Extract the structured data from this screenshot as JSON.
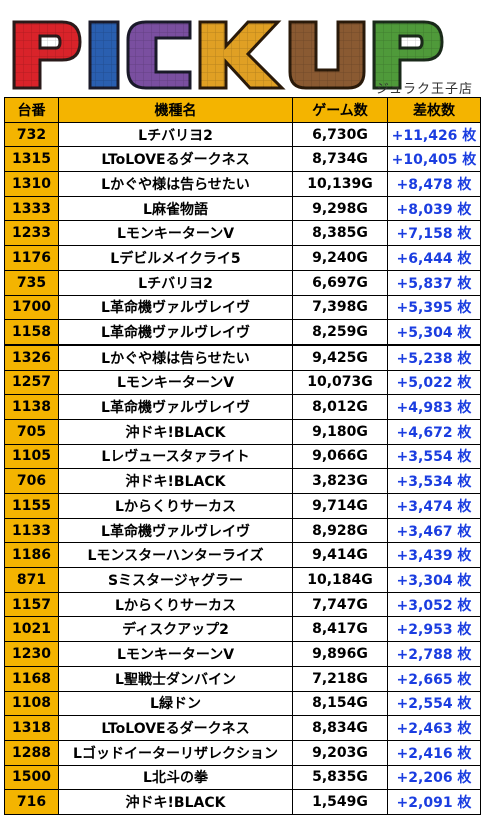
{
  "banner": {
    "title": "PICKUP",
    "store": "ジュラク王子店",
    "colors": {
      "P": "#d9232a",
      "I": "#2a5fb0",
      "C": "#7a4fa0",
      "K": "#e0a024",
      "U": "#8a5a32",
      "P2": "#4f9a3a"
    }
  },
  "table": {
    "headers": {
      "no": "台番",
      "name": "機種名",
      "games": "ゲーム数",
      "diff": "差枚数"
    },
    "rows": [
      {
        "no": "732",
        "name": "Lチバリヨ2",
        "games": "6,730G",
        "diff": "+11,426 枚"
      },
      {
        "no": "1315",
        "name": "LToLOVEるダークネス",
        "games": "8,734G",
        "diff": "+10,405 枚"
      },
      {
        "no": "1310",
        "name": "Lかぐや様は告らせたい",
        "games": "10,139G",
        "diff": "+8,478 枚"
      },
      {
        "no": "1333",
        "name": "L麻雀物語",
        "games": "9,298G",
        "diff": "+8,039 枚"
      },
      {
        "no": "1233",
        "name": "LモンキーターンV",
        "games": "8,385G",
        "diff": "+7,158 枚"
      },
      {
        "no": "1176",
        "name": "Lデビルメイクライ5",
        "games": "9,240G",
        "diff": "+6,444 枚"
      },
      {
        "no": "735",
        "name": "Lチバリヨ2",
        "games": "6,697G",
        "diff": "+5,837 枚"
      },
      {
        "no": "1700",
        "name": "L革命機ヴァルヴレイヴ",
        "games": "7,398G",
        "diff": "+5,395 枚"
      },
      {
        "no": "1158",
        "name": "L革命機ヴァルヴレイヴ",
        "games": "8,259G",
        "diff": "+5,304 枚"
      },
      {
        "no": "1326",
        "name": "Lかぐや様は告らせたい",
        "games": "9,425G",
        "diff": "+5,238 枚"
      },
      {
        "no": "1257",
        "name": "LモンキーターンV",
        "games": "10,073G",
        "diff": "+5,022 枚"
      },
      {
        "no": "1138",
        "name": "L革命機ヴァルヴレイヴ",
        "games": "8,012G",
        "diff": "+4,983 枚"
      },
      {
        "no": "705",
        "name": "沖ドキ!BLACK",
        "games": "9,180G",
        "diff": "+4,672 枚"
      },
      {
        "no": "1105",
        "name": "Lレヴュースタァライト",
        "games": "9,066G",
        "diff": "+3,554 枚"
      },
      {
        "no": "706",
        "name": "沖ドキ!BLACK",
        "games": "3,823G",
        "diff": "+3,534 枚"
      },
      {
        "no": "1155",
        "name": "Lからくりサーカス",
        "games": "9,714G",
        "diff": "+3,474 枚"
      },
      {
        "no": "1133",
        "name": "L革命機ヴァルヴレイヴ",
        "games": "8,928G",
        "diff": "+3,467 枚"
      },
      {
        "no": "1186",
        "name": "Lモンスターハンターライズ",
        "games": "9,414G",
        "diff": "+3,439 枚"
      },
      {
        "no": "871",
        "name": "Sミスタージャグラー",
        "games": "10,184G",
        "diff": "+3,304 枚"
      },
      {
        "no": "1157",
        "name": "Lからくりサーカス",
        "games": "7,747G",
        "diff": "+3,052 枚"
      },
      {
        "no": "1021",
        "name": "ディスクアップ2",
        "games": "8,417G",
        "diff": "+2,953 枚"
      },
      {
        "no": "1230",
        "name": "LモンキーターンV",
        "games": "9,896G",
        "diff": "+2,788 枚"
      },
      {
        "no": "1168",
        "name": "L聖戦士ダンバイン",
        "games": "7,218G",
        "diff": "+2,665 枚"
      },
      {
        "no": "1108",
        "name": "L緑ドン",
        "games": "8,154G",
        "diff": "+2,554 枚"
      },
      {
        "no": "1318",
        "name": "LToLOVEるダークネス",
        "games": "8,834G",
        "diff": "+2,463 枚"
      },
      {
        "no": "1288",
        "name": "Lゴッドイーターリザレクション",
        "games": "9,203G",
        "diff": "+2,416 枚"
      },
      {
        "no": "1500",
        "name": "L北斗の拳",
        "games": "5,835G",
        "diff": "+2,206 枚"
      },
      {
        "no": "716",
        "name": "沖ドキ!BLACK",
        "games": "1,549G",
        "diff": "+2,091 枚"
      }
    ]
  }
}
